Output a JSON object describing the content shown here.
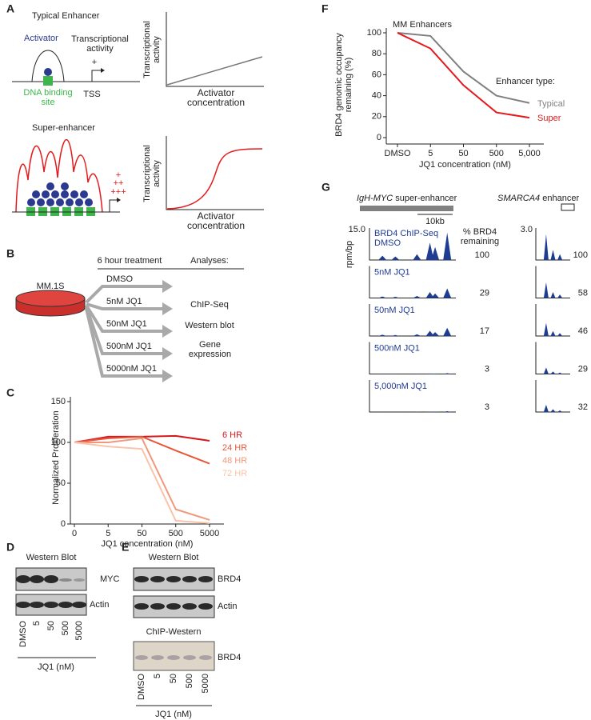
{
  "panel_labels": [
    "A",
    "B",
    "C",
    "D",
    "E",
    "F",
    "G"
  ],
  "panel_a": {
    "typical_title": "Typical Enhancer",
    "activator": "Activator",
    "transcriptional_activity": "Transcriptional activity",
    "plus": "+",
    "dna_binding_site": "DNA binding site",
    "tss": "TSS",
    "y_label": "Transcriptional activity",
    "x_label": "Activator concentration",
    "super_title": "Super-enhancer",
    "pluses": [
      "+",
      "++",
      "+++"
    ]
  },
  "panel_b": {
    "treatment": "6 hour treatment",
    "analyses_title": "Analyses:",
    "cell_line": "MM.1S",
    "treatments": [
      "DMSO",
      "5nM JQ1",
      "50nM JQ1",
      "500nM JQ1",
      "5000nM JQ1"
    ],
    "analyses": [
      "ChIP-Seq",
      "Western blot",
      "Gene expression"
    ]
  },
  "panel_d": {
    "title": "Western Blot",
    "bands": [
      "MYC",
      "Actin"
    ],
    "lanes": [
      "DMSO",
      "5",
      "50",
      "500",
      "5000"
    ],
    "x_label": "JQ1 (nM)"
  },
  "panel_e": {
    "title": "Western Blot",
    "bands": [
      "BRD4",
      "Actin"
    ],
    "chip_title": "ChIP-Western",
    "chip_band": "BRD4",
    "lanes": [
      "DMSO",
      "5",
      "50",
      "500",
      "5000"
    ],
    "x_label": "JQ1 (nM)"
  },
  "panel_g": {
    "left_title_italic": "IgH-MYC",
    "left_title": " super-enhancer",
    "right_title_italic": "SMARCA4",
    "right_title": " enhancer",
    "scale": "10kb",
    "left_ymax": "15.0",
    "right_ymax": "3.0",
    "y_unit": "rpm/bp",
    "track_title": "BRD4 ChIP-Seq",
    "remaining_header": "% BRD4 remaining",
    "conditions": [
      "DMSO",
      "5nM JQ1",
      "50nM JQ1",
      "500nM JQ1",
      "5,000nM JQ1"
    ],
    "left_remaining": [
      "100",
      "29",
      "17",
      "3",
      "3"
    ],
    "right_remaining": [
      "100",
      "58",
      "46",
      "29",
      "32"
    ]
  },
  "chart_data": [
    {
      "type": "line",
      "y_label": "Normalized Proliferation",
      "x_label": "JQ1 concentration (nM)",
      "categories": [
        "0",
        "5",
        "50",
        "500",
        "5000"
      ],
      "series": [
        {
          "name": "6 HR",
          "color": "#d7191c",
          "values": [
            100,
            107,
            107,
            108,
            102
          ]
        },
        {
          "name": "24 HR",
          "color": "#e8553a",
          "values": [
            100,
            105,
            107,
            90,
            74
          ]
        },
        {
          "name": "48 HR",
          "color": "#f2987a",
          "values": [
            100,
            100,
            105,
            18,
            5
          ]
        },
        {
          "name": "72 HR",
          "color": "#f9c3ab",
          "values": [
            100,
            95,
            92,
            4,
            1
          ]
        }
      ],
      "ylim": [
        0,
        150
      ],
      "yticks": [
        0,
        50,
        100,
        150
      ]
    },
    {
      "type": "line",
      "title": "MM Enhancers",
      "legend_title": "Enhancer type:",
      "y_label": "BRD4 genomic occupancy remaining (%)",
      "x_label": "JQ1 concentration (nM)",
      "categories": [
        "DMSO",
        "5",
        "50",
        "500",
        "5,000"
      ],
      "series": [
        {
          "name": "Typical",
          "color": "#808080",
          "values": [
            100,
            97,
            63,
            40,
            33
          ]
        },
        {
          "name": "Super",
          "color": "#e41a1c",
          "values": [
            100,
            85,
            50,
            24,
            19
          ]
        }
      ],
      "ylim": [
        0,
        100
      ],
      "yticks": [
        0,
        20,
        40,
        60,
        80,
        100
      ]
    }
  ]
}
